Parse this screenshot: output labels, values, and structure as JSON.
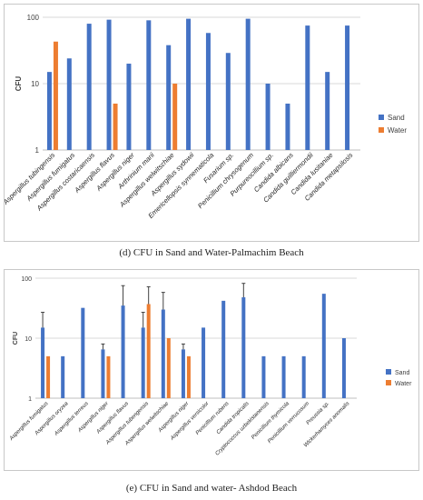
{
  "colors": {
    "sand": "#4472C4",
    "water": "#ED7D31",
    "grid": "#d9d9d9",
    "axis": "#bfbfbf",
    "error": "#404040"
  },
  "chart_data": [
    {
      "type": "bar",
      "caption": "(d) CFU in Sand and Water-Palmachim Beach",
      "ylabel": "CFU",
      "yscale": "log",
      "ylim": [
        1,
        100
      ],
      "yticks": [
        "1",
        "10",
        "100"
      ],
      "legend_position": "right",
      "categories": [
        "Aspergillus tubingensis",
        "Aspergillus fumigatus",
        "Aspergillus costaricaensis",
        "Aspergillus flavus",
        "Aspergillus niger",
        "Arthrinium marii",
        "Aspergillus welwitschiae",
        "Aspergillus sydowii",
        "Emericellopsis synnematicola",
        "Fusarium sp.",
        "Penicillium chrysogenum",
        "Purpureocillium sp.",
        "Candida albicans",
        "Candida guilliermondii",
        "Candida lusitaniae",
        "Candida metapsilosis"
      ],
      "series": [
        {
          "name": "Sand",
          "values": [
            15,
            24,
            80,
            92,
            20,
            90,
            38,
            95,
            58,
            29,
            95,
            10,
            5,
            75,
            15,
            75
          ]
        },
        {
          "name": "Water",
          "values": [
            43,
            null,
            null,
            5,
            null,
            null,
            10,
            null,
            null,
            null,
            null,
            null,
            null,
            null,
            null,
            null
          ]
        }
      ]
    },
    {
      "type": "bar",
      "caption": "(e) CFU in Sand and water- Ashdod Beach",
      "ylabel": "CFU",
      "yscale": "log",
      "ylim": [
        1,
        100
      ],
      "yticks": [
        "1",
        "10",
        "100"
      ],
      "legend_position": "right",
      "categories": [
        "Aspergillus fumigatus",
        "Aspergillus oryzea",
        "Aspergillus terreus",
        "Aspergillus niger",
        "Aspergillus flavus",
        "Aspergillus tubengensis",
        "Aspergillus welwitschiae",
        "Aspergillus niger",
        "Aspergillus versicolor",
        "Penicillium rubens",
        "Candida tropicalis",
        "Cryptococcus uzbekistanensis",
        "Penicillium thymicola",
        "Penicillium verrucosum",
        "Preussia sp.",
        "Wickerhamyces anomalis"
      ],
      "series": [
        {
          "name": "Sand",
          "values": [
            15,
            5,
            32,
            6.5,
            35,
            15,
            30,
            6.5,
            15,
            42,
            48,
            5,
            5,
            5,
            55,
            10
          ],
          "error_upper": [
            27,
            null,
            null,
            8,
            75,
            27,
            58,
            8,
            null,
            null,
            82,
            null,
            null,
            null,
            null,
            null
          ]
        },
        {
          "name": "Water",
          "values": [
            5,
            null,
            null,
            5,
            null,
            37,
            10,
            5,
            null,
            null,
            null,
            null,
            null,
            null,
            null,
            null
          ],
          "error_upper": [
            null,
            null,
            null,
            null,
            null,
            72,
            null,
            null,
            null,
            null,
            null,
            null,
            null,
            null,
            null,
            null
          ]
        }
      ]
    }
  ]
}
